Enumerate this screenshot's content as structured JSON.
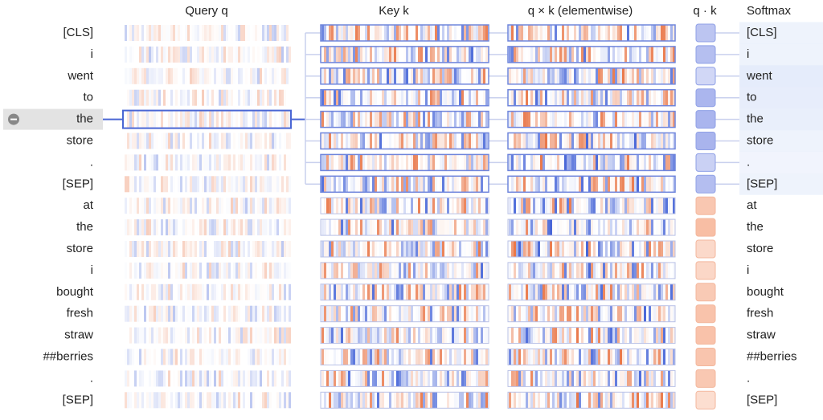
{
  "headers": {
    "query": "Query q",
    "key": "Key k",
    "product": "q × k (elementwise)",
    "dot": "q · k",
    "softmax": "Softmax"
  },
  "tokens": [
    "[CLS]",
    "i",
    "went",
    "to",
    "the",
    "store",
    ".",
    "[SEP]",
    "at",
    "the",
    "store",
    "i",
    "bought",
    "fresh",
    "straw",
    "##berries",
    ".",
    "[SEP]"
  ]
}
